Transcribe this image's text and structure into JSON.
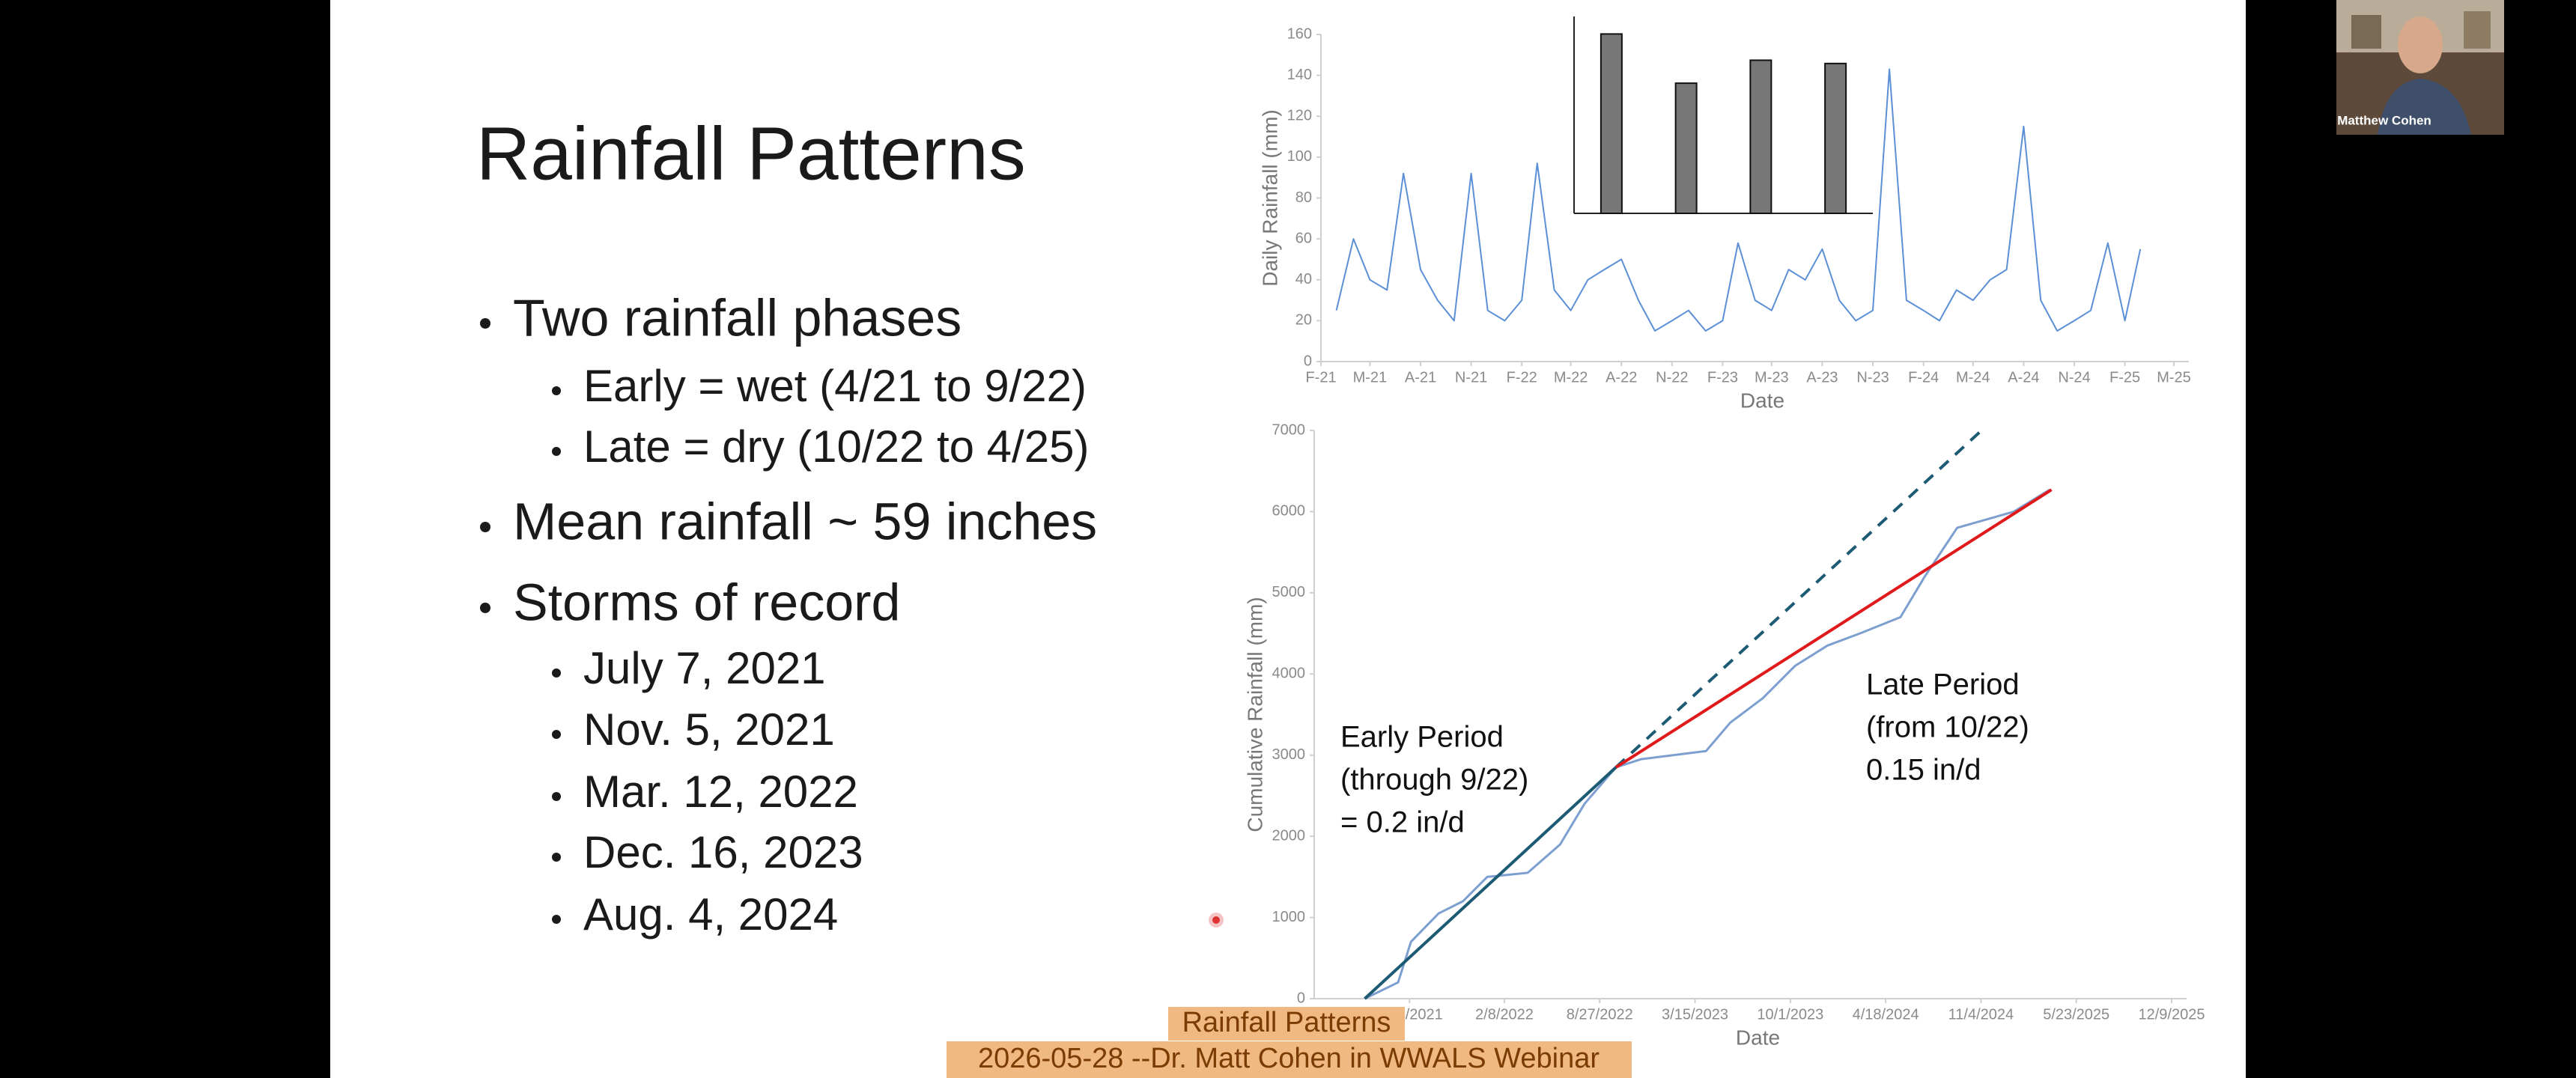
{
  "slide": {
    "title": "Rainfall Patterns",
    "bullets": [
      {
        "text": "Two rainfall phases",
        "sub": [
          "Early = wet (4/21 to 9/22)",
          "Late = dry (10/22 to 4/25)"
        ]
      },
      {
        "text": "Mean rainfall ~ 59 inches"
      },
      {
        "text": "Storms of record",
        "sub": [
          "July 7, 2021",
          "Nov. 5, 2021",
          "Mar. 12, 2022",
          "Dec. 16, 2023",
          "Aug. 4, 2024"
        ]
      }
    ]
  },
  "chart_data": [
    {
      "type": "line",
      "xlabel": "Date",
      "ylabel": "Daily Rainfall (mm)",
      "ylim": [
        0,
        160
      ],
      "yticks": [
        0,
        20,
        40,
        60,
        80,
        100,
        120,
        140,
        160
      ],
      "xlim": [
        "2021-02",
        "2025-05"
      ],
      "xticks": [
        {
          "value": "2021-02",
          "label": "F-21"
        },
        {
          "value": "2021-05",
          "label": "M-21"
        },
        {
          "value": "2021-08",
          "label": "A-21"
        },
        {
          "value": "2021-11",
          "label": "N-21"
        },
        {
          "value": "2022-02",
          "label": "F-22"
        },
        {
          "value": "2022-05",
          "label": "M-22"
        },
        {
          "value": "2022-08",
          "label": "A-22"
        },
        {
          "value": "2022-11",
          "label": "N-22"
        },
        {
          "value": "2023-02",
          "label": "F-23"
        },
        {
          "value": "2023-05",
          "label": "M-23"
        },
        {
          "value": "2023-08",
          "label": "A-23"
        },
        {
          "value": "2023-11",
          "label": "N-23"
        },
        {
          "value": "2024-02",
          "label": "F-24"
        },
        {
          "value": "2024-05",
          "label": "M-24"
        },
        {
          "value": "2024-08",
          "label": "A-24"
        },
        {
          "value": "2024-11",
          "label": "N-24"
        },
        {
          "value": "2025-02",
          "label": "F-25"
        },
        {
          "value": "2025-05",
          "label": "M-25"
        }
      ],
      "series": [
        {
          "color": "#5b8fd6",
          "x": [
            "2021-03",
            "2021-04",
            "2021-05",
            "2021-06",
            "2021-07",
            "2021-08",
            "2021-09",
            "2021-10",
            "2021-11",
            "2021-12",
            "2022-01",
            "2022-02",
            "2022-03",
            "2022-04",
            "2022-05",
            "2022-06",
            "2022-07",
            "2022-08",
            "2022-09",
            "2022-10",
            "2022-11",
            "2022-12",
            "2023-01",
            "2023-02",
            "2023-03",
            "2023-04",
            "2023-05",
            "2023-06",
            "2023-07",
            "2023-08",
            "2023-09",
            "2023-10",
            "2023-11",
            "2023-12",
            "2024-01",
            "2024-02",
            "2024-03",
            "2024-04",
            "2024-05",
            "2024-06",
            "2024-07",
            "2024-08",
            "2024-09",
            "2024-10",
            "2024-11",
            "2024-12",
            "2025-01",
            "2025-02",
            "2025-03"
          ],
          "values": [
            25,
            60,
            40,
            35,
            92,
            45,
            30,
            20,
            92,
            25,
            20,
            30,
            97,
            35,
            25,
            40,
            45,
            50,
            30,
            15,
            20,
            25,
            15,
            20,
            58,
            30,
            25,
            45,
            40,
            55,
            30,
            20,
            25,
            143,
            30,
            25,
            20,
            35,
            30,
            40,
            45,
            115,
            30,
            15,
            20,
            25,
            58,
            20,
            55
          ]
        }
      ]
    },
    {
      "type": "bar",
      "ylim": [
        0,
        1800
      ],
      "color": "#777777",
      "values": [
        1640,
        1190,
        1400,
        1370
      ]
    },
    {
      "type": "line",
      "xlabel": "Date",
      "ylabel": "Cumulative Rainfall (mm)",
      "ylim": [
        0,
        7000
      ],
      "yticks": [
        0,
        1000,
        2000,
        3000,
        4000,
        5000,
        6000,
        7000
      ],
      "xlim": [
        "2021-01-05",
        "2025-12-09"
      ],
      "xticks": [
        {
          "value": "2021-07-24",
          "label": "7/24/2021"
        },
        {
          "value": "2022-02-08",
          "label": "2/8/2022"
        },
        {
          "value": "2022-08-27",
          "label": "8/27/2022"
        },
        {
          "value": "2023-03-15",
          "label": "3/15/2023"
        },
        {
          "value": "2023-10-01",
          "label": "10/1/2023"
        },
        {
          "value": "2024-04-18",
          "label": "4/18/2024"
        },
        {
          "value": "2024-11-04",
          "label": "11/4/2024"
        },
        {
          "value": "2025-05-23",
          "label": "5/23/2025"
        },
        {
          "value": "2025-12-09",
          "label": "12/9/2025"
        }
      ],
      "series": [
        {
          "color": "#7c9fd0",
          "x": [
            "2021-04-21",
            "2021-06-30",
            "2021-07-27",
            "2021-09-23",
            "2021-11-13",
            "2022-01-03",
            "2022-03-29",
            "2022-06-05",
            "2022-07-26",
            "2022-09-30",
            "2022-11-22",
            "2023-04-07",
            "2023-05-28",
            "2023-08-04",
            "2023-10-11",
            "2023-12-18",
            "2024-02-24",
            "2024-05-19",
            "2024-07-09",
            "2024-09-15",
            "2025-01-12",
            "2025-03-28"
          ],
          "values": [
            0,
            200,
            700,
            1050,
            1200,
            1500,
            1550,
            1900,
            2400,
            2850,
            2950,
            3050,
            3400,
            3700,
            4100,
            4350,
            4500,
            4700,
            5200,
            5800,
            6000,
            6270
          ]
        },
        {
          "color": "#1d5a73",
          "x": [
            "2021-04-21",
            "2022-09-30"
          ],
          "values": [
            0,
            2850
          ]
        },
        {
          "color": "#1d5a73",
          "dashed": true,
          "x": [
            "2022-09-30",
            "2024-11-05"
          ],
          "values": [
            2850,
            7000
          ]
        },
        {
          "color": "#e0191b",
          "x": [
            "2022-09-30",
            "2025-04-01"
          ],
          "values": [
            2850,
            6270
          ]
        }
      ],
      "annotations": [
        [
          "Early Period",
          "(through 9/22)",
          "= 0.2 in/d"
        ],
        [
          "Late Period",
          "(from 10/22)",
          "0.15 in/d"
        ]
      ]
    }
  ],
  "webcam": {
    "name": "Matthew Cohen"
  },
  "captions": [
    "Rainfall Patterns",
    "2026-05-28 --Dr. Matt Cohen in WWALS Webinar"
  ]
}
